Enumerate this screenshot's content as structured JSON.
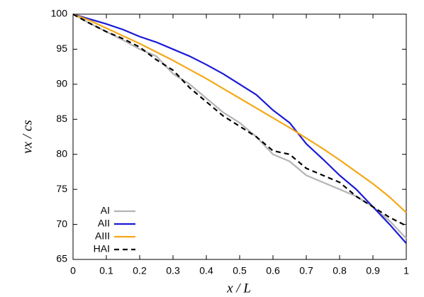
{
  "chart_data": {
    "type": "line",
    "x_label": "x / L",
    "y_label": "vx / cs",
    "x": [
      0,
      0.05,
      0.1,
      0.15,
      0.2,
      0.25,
      0.3,
      0.35,
      0.4,
      0.45,
      0.5,
      0.55,
      0.6,
      0.65,
      0.7,
      0.75,
      0.8,
      0.85,
      0.9,
      0.95,
      1
    ],
    "series": [
      {
        "name": "AI",
        "color": "#b4b4b4",
        "style": "solid",
        "values": [
          100,
          98.7,
          97.5,
          96.3,
          95,
          94,
          91.5,
          90,
          88,
          86,
          84.5,
          82.5,
          80,
          79,
          77,
          76,
          75,
          74,
          72.5,
          70.5,
          68
        ]
      },
      {
        "name": "AII",
        "color": "#1a1ad6",
        "style": "solid",
        "values": [
          100,
          99.3,
          98.6,
          97.8,
          96.8,
          96,
          95,
          94,
          92.8,
          91.5,
          90,
          88.5,
          86.3,
          84.5,
          81.5,
          79.3,
          77,
          75,
          72.5,
          70,
          67.3
        ]
      },
      {
        "name": "AIII",
        "color": "#f5a818",
        "style": "solid",
        "values": [
          100,
          99.1,
          98,
          96.9,
          95.8,
          94.6,
          93.4,
          92.1,
          90.8,
          89.4,
          88,
          86.6,
          85.2,
          83.8,
          82.3,
          80.8,
          79.2,
          77.5,
          75.8,
          73.9,
          71.7
        ]
      },
      {
        "name": "HAI",
        "color": "#000000",
        "style": "dashed",
        "values": [
          100,
          98.7,
          97.5,
          96.5,
          95.3,
          93.5,
          92,
          89.5,
          87.5,
          85.5,
          84,
          82.5,
          80.5,
          80,
          78,
          77,
          76,
          74,
          72.5,
          71,
          69.8
        ]
      }
    ],
    "xlim": [
      0,
      1
    ],
    "xticks": [
      0,
      0.1,
      0.2,
      0.3,
      0.4,
      0.5,
      0.6,
      0.7,
      0.8,
      0.9,
      1
    ],
    "ylim": [
      65,
      100
    ],
    "yticks": [
      65,
      70,
      75,
      80,
      85,
      90,
      95,
      100
    ],
    "grid": false,
    "legend": "lower left"
  }
}
